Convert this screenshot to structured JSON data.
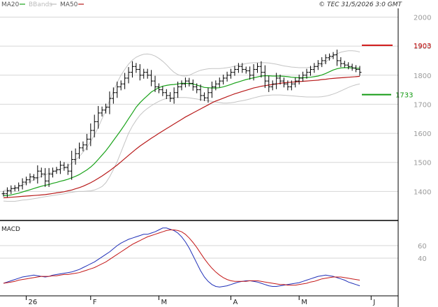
{
  "header": {
    "legend": [
      {
        "label": "MA20",
        "color": "#1aa31a"
      },
      {
        "label": "BBands",
        "color": "#bdbdbd"
      },
      {
        "label": "MA50",
        "color": "#b81a1a"
      }
    ],
    "copyright": "© TEC 31/5/2026 3:0 GMT"
  },
  "chart_data": [
    {
      "type": "ohlc",
      "title": "",
      "ylim": [
        1300,
        2030
      ],
      "yticks": [
        "2000",
        "1900",
        "1800",
        "1700",
        "1600",
        "1500",
        "1400"
      ],
      "grid": true,
      "closes": [
        1392,
        1402,
        1410,
        1412,
        1420,
        1432,
        1440,
        1450,
        1447,
        1470,
        1460,
        1436,
        1460,
        1470,
        1475,
        1490,
        1482,
        1470,
        1510,
        1530,
        1550,
        1560,
        1580,
        1610,
        1640,
        1670,
        1680,
        1690,
        1720,
        1740,
        1760,
        1770,
        1790,
        1810,
        1830,
        1820,
        1800,
        1810,
        1800,
        1780,
        1760,
        1750,
        1740,
        1730,
        1720,
        1740,
        1760,
        1770,
        1780,
        1772,
        1760,
        1750,
        1730,
        1722,
        1740,
        1760,
        1770,
        1780,
        1790,
        1800,
        1810,
        1820,
        1830,
        1820,
        1815,
        1800,
        1820,
        1830,
        1810,
        1780,
        1760,
        1770,
        1790,
        1780,
        1770,
        1760,
        1770,
        1780,
        1790,
        1800,
        1810,
        1820,
        1830,
        1840,
        1850,
        1860,
        1865,
        1870,
        1850,
        1840,
        1835,
        1830,
        1825,
        1820,
        1810
      ],
      "ma20": [
        1385,
        1386,
        1388,
        1391,
        1394,
        1398,
        1402,
        1406,
        1410,
        1414,
        1418,
        1421,
        1424,
        1428,
        1431,
        1435,
        1438,
        1442,
        1447,
        1452,
        1458,
        1466,
        1474,
        1484,
        1496,
        1510,
        1525,
        1540,
        1557,
        1575,
        1593,
        1611,
        1630,
        1650,
        1670,
        1690,
        1705,
        1718,
        1730,
        1742,
        1750,
        1757,
        1762,
        1765,
        1767,
        1768,
        1770,
        1772,
        1772,
        1771,
        1770,
        1766,
        1762,
        1758,
        1757,
        1756,
        1756,
        1757,
        1760,
        1764,
        1768,
        1773,
        1777,
        1781,
        1785,
        1788,
        1791,
        1794,
        1797,
        1798,
        1798,
        1797,
        1797,
        1797,
        1796,
        1795,
        1793,
        1792,
        1791,
        1791,
        1792,
        1793,
        1795,
        1797,
        1801,
        1806,
        1812,
        1818,
        1822,
        1825,
        1826,
        1826,
        1825,
        1824,
        1824
      ],
      "bb_upper": [
        1403,
        1405,
        1408,
        1412,
        1416,
        1422,
        1428,
        1434,
        1440,
        1446,
        1452,
        1457,
        1462,
        1467,
        1472,
        1477,
        1482,
        1488,
        1497,
        1508,
        1520,
        1535,
        1552,
        1572,
        1595,
        1620,
        1650,
        1680,
        1713,
        1745,
        1775,
        1800,
        1820,
        1838,
        1852,
        1862,
        1868,
        1872,
        1873,
        1871,
        1866,
        1858,
        1848,
        1836,
        1822,
        1810,
        1802,
        1798,
        1797,
        1800,
        1806,
        1812,
        1817,
        1820,
        1822,
        1823,
        1823,
        1823,
        1824,
        1826,
        1828,
        1831,
        1834,
        1837,
        1840,
        1842,
        1843,
        1843,
        1843,
        1843,
        1842,
        1840,
        1838,
        1835,
        1832,
        1830,
        1828,
        1827,
        1826,
        1826,
        1826,
        1827,
        1829,
        1832,
        1837,
        1845,
        1856,
        1866,
        1874,
        1879,
        1882,
        1884,
        1884,
        1883,
        1880
      ],
      "bb_lower": [
        1367,
        1366,
        1366,
        1366,
        1368,
        1370,
        1371,
        1373,
        1375,
        1377,
        1380,
        1382,
        1384,
        1386,
        1388,
        1390,
        1392,
        1395,
        1397,
        1399,
        1400,
        1400,
        1401,
        1402,
        1405,
        1410,
        1417,
        1430,
        1450,
        1475,
        1503,
        1535,
        1568,
        1600,
        1625,
        1645,
        1662,
        1675,
        1686,
        1695,
        1703,
        1710,
        1716,
        1720,
        1722,
        1723,
        1723,
        1723,
        1723,
        1722,
        1720,
        1718,
        1716,
        1714,
        1712,
        1710,
        1708,
        1706,
        1704,
        1704,
        1705,
        1707,
        1710,
        1712,
        1715,
        1718,
        1722,
        1725,
        1728,
        1730,
        1731,
        1732,
        1732,
        1732,
        1731,
        1730,
        1729,
        1728,
        1727,
        1726,
        1725,
        1725,
        1725,
        1725,
        1726,
        1728,
        1731,
        1735,
        1740,
        1746,
        1752,
        1758,
        1763,
        1767,
        1770
      ],
      "ma50": [
        1378,
        1379,
        1380,
        1381,
        1382,
        1383,
        1384,
        1385,
        1386,
        1387,
        1388,
        1389,
        1391,
        1393,
        1395,
        1397,
        1399,
        1402,
        1405,
        1409,
        1413,
        1418,
        1424,
        1430,
        1437,
        1445,
        1453,
        1462,
        1471,
        1481,
        1491,
        1502,
        1513,
        1524,
        1535,
        1546,
        1556,
        1565,
        1574,
        1583,
        1591,
        1600,
        1608,
        1616,
        1624,
        1632,
        1640,
        1648,
        1656,
        1663,
        1670,
        1677,
        1684,
        1691,
        1698,
        1705,
        1711,
        1716,
        1721,
        1726,
        1731,
        1736,
        1740,
        1744,
        1748,
        1752,
        1756,
        1759,
        1762,
        1764,
        1766,
        1768,
        1770,
        1772,
        1774,
        1775,
        1776,
        1777,
        1778,
        1779,
        1780,
        1781,
        1782,
        1783,
        1785,
        1786,
        1788,
        1789,
        1790,
        1791,
        1792,
        1793,
        1794,
        1795,
        1796
      ],
      "levels": [
        {
          "value": 1903,
          "label": "1903",
          "color": "#d01515"
        },
        {
          "value": 1733,
          "label": "1733",
          "color": "#139a13"
        }
      ]
    },
    {
      "type": "line",
      "title": "MACD",
      "ylim": [
        -20,
        100
      ],
      "yticks": [
        "60",
        "40"
      ],
      "grid": true,
      "series": [
        {
          "color": "#1f2fb8",
          "values": [
            0,
            2,
            4,
            6,
            8,
            10,
            11,
            12,
            13,
            12,
            11,
            10,
            11,
            13,
            14,
            15,
            16,
            17,
            18,
            20,
            22,
            25,
            28,
            31,
            34,
            38,
            42,
            46,
            50,
            55,
            60,
            64,
            67,
            70,
            72,
            74,
            76,
            78,
            78,
            80,
            82,
            85,
            88,
            88,
            86,
            84,
            80,
            74,
            66,
            56,
            44,
            32,
            20,
            10,
            3,
            -2,
            -5,
            -6,
            -5,
            -4,
            -2,
            0,
            2,
            3,
            4,
            4,
            3,
            2,
            0,
            -2,
            -4,
            -5,
            -5,
            -4,
            -3,
            -2,
            -1,
            0,
            1,
            3,
            5,
            7,
            9,
            11,
            12,
            13,
            12,
            11,
            9,
            7,
            5,
            2,
            0,
            -2,
            -4
          ]
        },
        {
          "color": "#c41818",
          "values": [
            0,
            1,
            2,
            3,
            5,
            6,
            7,
            8,
            9,
            10,
            11,
            11,
            11,
            12,
            12,
            13,
            14,
            14,
            15,
            16,
            17,
            19,
            21,
            23,
            25,
            28,
            31,
            34,
            38,
            42,
            46,
            50,
            54,
            58,
            62,
            65,
            68,
            71,
            74,
            76,
            78,
            80,
            82,
            84,
            85,
            85,
            84,
            82,
            78,
            72,
            65,
            57,
            48,
            39,
            31,
            24,
            18,
            13,
            9,
            6,
            4,
            3,
            3,
            3,
            3,
            4,
            4,
            4,
            3,
            2,
            1,
            0,
            -1,
            -2,
            -2,
            -3,
            -3,
            -3,
            -2,
            -1,
            0,
            2,
            3,
            5,
            7,
            8,
            9,
            10,
            10,
            10,
            9,
            8,
            7,
            6,
            5
          ]
        }
      ]
    }
  ],
  "xaxis": {
    "labels": [
      {
        "text": "26",
        "index": 6
      },
      {
        "text": "F",
        "index": 23
      },
      {
        "text": "M",
        "index": 41
      },
      {
        "text": "A",
        "index": 60
      },
      {
        "text": "M",
        "index": 78
      },
      {
        "text": "J",
        "index": 97
      }
    ]
  }
}
